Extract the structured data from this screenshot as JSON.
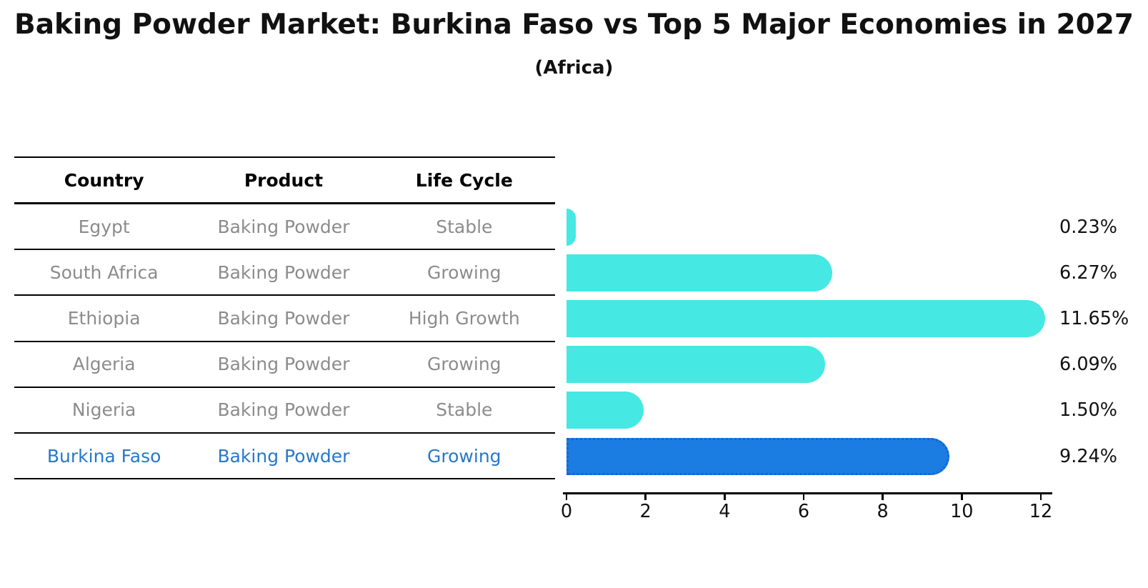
{
  "table": {
    "headers": [
      "Country",
      "Product",
      "Life Cycle"
    ],
    "rows": [
      {
        "country": "Egypt",
        "product": "Baking Powder",
        "life_cycle": "Stable",
        "highlight": false
      },
      {
        "country": "South Africa",
        "product": "Baking Powder",
        "life_cycle": "Growing",
        "highlight": false
      },
      {
        "country": "Ethiopia",
        "product": "Baking Powder",
        "life_cycle": "High Growth",
        "highlight": false
      },
      {
        "country": "Algeria",
        "product": "Baking Powder",
        "life_cycle": "Growing",
        "highlight": false
      },
      {
        "country": "Nigeria",
        "product": "Baking Powder",
        "life_cycle": "Stable",
        "highlight": false
      },
      {
        "country": "Burkina Faso",
        "product": "Baking Powder",
        "life_cycle": "Growing",
        "highlight": true
      }
    ]
  },
  "chart_data": {
    "type": "bar",
    "orientation": "horizontal",
    "title": "Baking Powder Market: Burkina Faso vs Top 5 Major Economies in 2027",
    "subtitle": "(Africa)",
    "categories": [
      "Egypt",
      "South Africa",
      "Ethiopia",
      "Algeria",
      "Nigeria",
      "Burkina Faso"
    ],
    "values": [
      0.23,
      6.27,
      11.65,
      6.09,
      1.5,
      9.24
    ],
    "value_labels": [
      "0.23%",
      "6.27%",
      "11.65%",
      "6.09%",
      "1.50%",
      "9.24%"
    ],
    "unit": "percent",
    "xlim": [
      0,
      12
    ],
    "xticks": [
      0,
      2,
      4,
      6,
      8,
      10,
      12
    ],
    "grid": false,
    "legend": "none",
    "highlight_index": 5,
    "bar_color": "#45e8e2",
    "highlight_bar_color": "#1b7ce2",
    "highlight_bar_border": "#1365d6"
  },
  "colors": {
    "background": "#ffffff",
    "text_primary": "#111111",
    "text_muted": "#8c8c8c",
    "accent_blue": "#2878c8",
    "line_color": "#000000"
  }
}
